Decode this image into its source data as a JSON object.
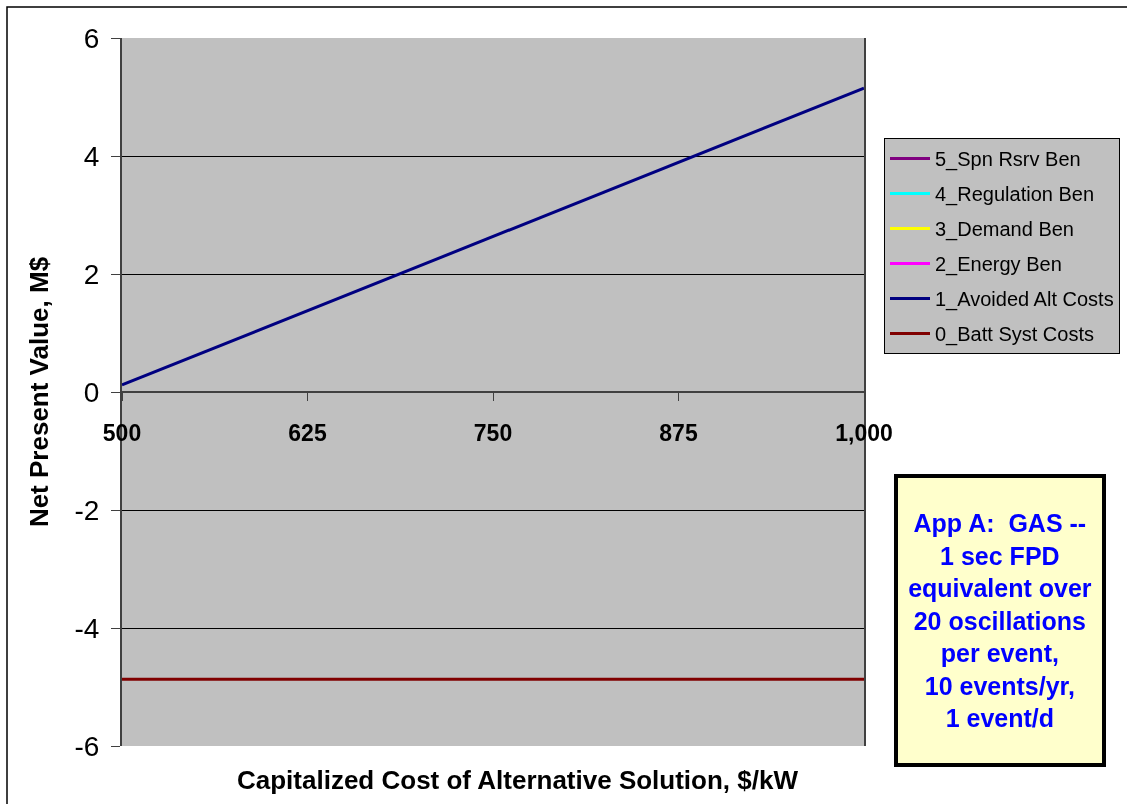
{
  "chart_data": {
    "type": "line",
    "xlabel": "Capitalized Cost of Alternative Solution, $/kW",
    "ylabel": "Net Present Value, M$",
    "x": [
      500,
      1000
    ],
    "xlim": [
      500,
      1000
    ],
    "xticks": [
      500,
      625,
      750,
      875,
      {
        "value": 1000,
        "label": "1,000"
      }
    ],
    "ylim": [
      -6,
      6
    ],
    "yticks": [
      -6,
      -4,
      -2,
      0,
      2,
      4,
      6
    ],
    "grid": "y",
    "legend": "right",
    "marker": "none",
    "line_style": "solid",
    "series": [
      {
        "name": "5_Spn Rsrv Ben",
        "color": "#800080",
        "values": [
          null,
          null
        ]
      },
      {
        "name": "4_Regulation Ben",
        "color": "#00ffff",
        "values": [
          null,
          null
        ]
      },
      {
        "name": "3_Demand Ben",
        "color": "#ffff00",
        "values": [
          null,
          null
        ]
      },
      {
        "name": "2_Energy Ben",
        "color": "#ff00ff",
        "values": [
          null,
          null
        ]
      },
      {
        "name": "1_Avoided Alt Costs",
        "color": "#000080",
        "values": [
          0.12,
          5.15
        ]
      },
      {
        "name": "0_Batt Syst Costs",
        "color": "#800000",
        "values": [
          -4.87,
          -4.87
        ]
      }
    ],
    "annotations": [
      "App A:  GAS --\n1 sec FPD\nequivalent over\n20 oscillations\nper event,\n10 events/yr,\n1 event/d"
    ]
  }
}
